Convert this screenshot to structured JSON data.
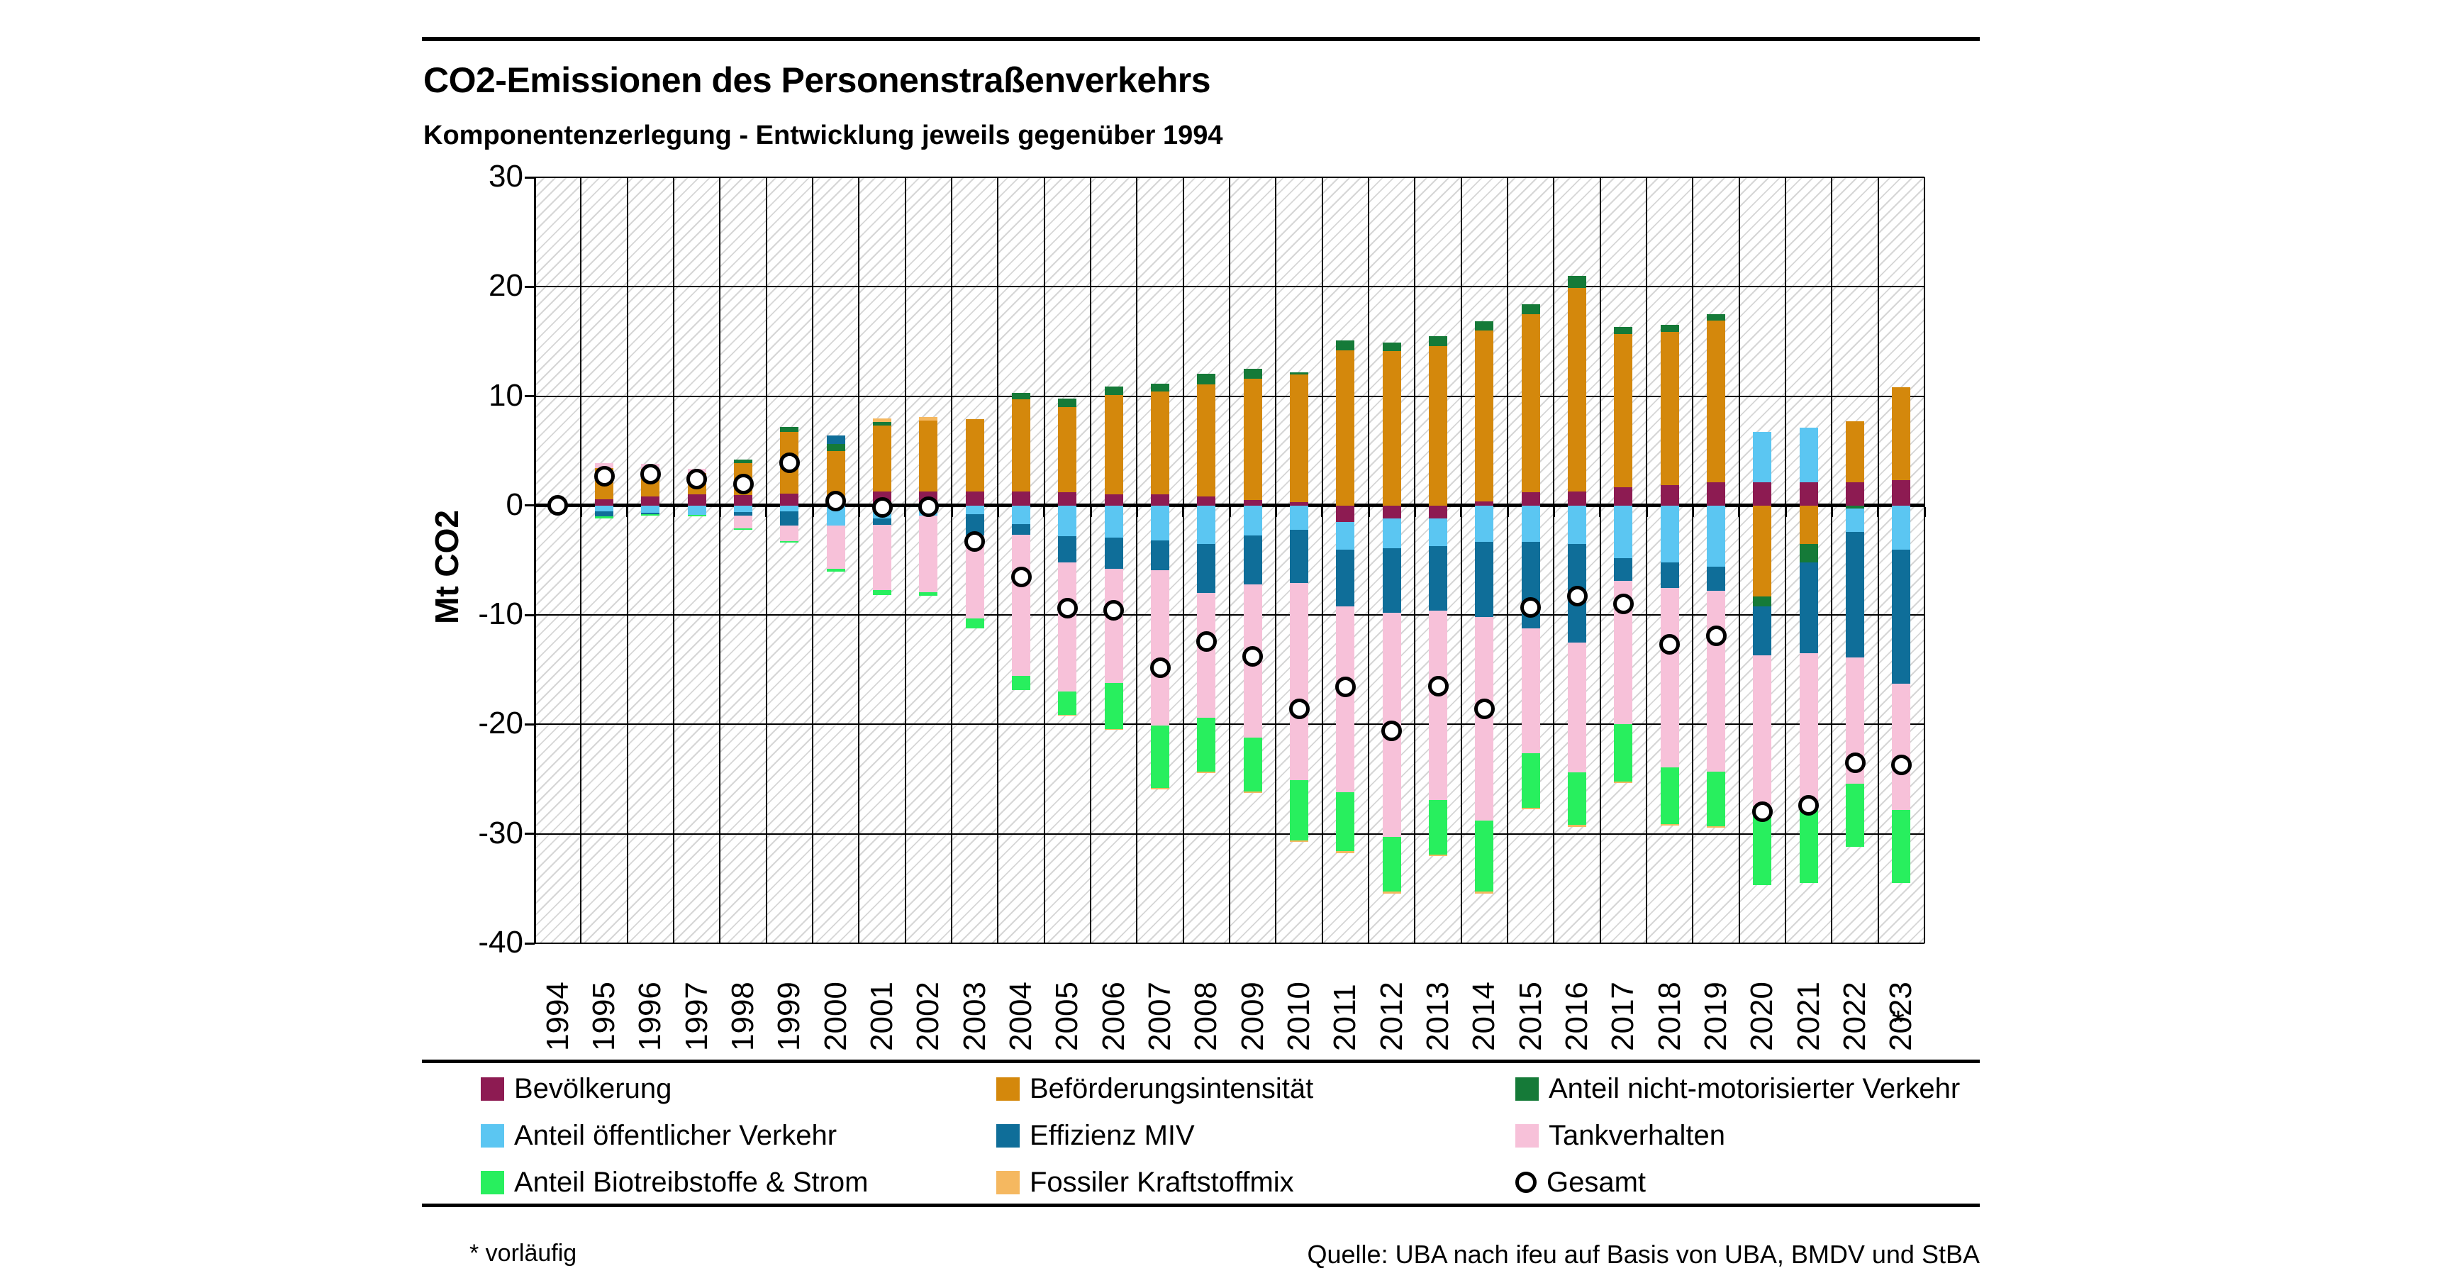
{
  "header": {
    "title": "CO2-Emissionen des Personenstraßenverkehrs",
    "subtitle": "Komponentenzerlegung - Entwicklung jeweils gegenüber 1994"
  },
  "footer": {
    "footnote": "* vorläufig",
    "source": "Quelle: UBA nach ifeu auf Basis von UBA, BMDV und StBA"
  },
  "chart_data": {
    "type": "bar",
    "subtype": "stacked-bar-with-total-markers",
    "title": "CO2-Emissionen des Personenstraßenverkehrs",
    "subtitle": "Komponentenzerlegung - Entwicklung jeweils gegenüber 1994",
    "ylabel": "Mt CO2",
    "ylim": [
      -40,
      30
    ],
    "yticks": [
      30,
      20,
      10,
      0,
      -10,
      -20,
      -30,
      -40
    ],
    "grid": "on",
    "plot_background": "diagonal-hatch",
    "legend_position": "bottom",
    "categories": [
      "1994",
      "1995",
      "1996",
      "1997",
      "1998",
      "1999",
      "2000",
      "2001",
      "2002",
      "2003",
      "2004",
      "2005",
      "2006",
      "2007",
      "2008",
      "2009",
      "2010",
      "2011",
      "2012",
      "2013",
      "2014",
      "2015",
      "2016",
      "2017",
      "2018",
      "2019",
      "2020",
      "2021",
      "2022",
      "2023"
    ],
    "last_category_flag": "*",
    "series": [
      {
        "name": "Bevölkerung",
        "slug": "bevoelkerung",
        "color": "#8D1B52",
        "values": [
          0,
          0.6,
          0.85,
          1.0,
          0.95,
          1.1,
          0.1,
          1.3,
          1.3,
          1.3,
          1.3,
          1.2,
          1.0,
          1.0,
          0.85,
          0.5,
          0.3,
          -1.5,
          -1.2,
          -1.2,
          0.4,
          1.2,
          1.3,
          1.7,
          1.9,
          2.1,
          2.1,
          2.1,
          2.1,
          2.3
        ]
      },
      {
        "name": "Beförderungsintensität",
        "slug": "befoerderungsintensitaet",
        "color": "#D4880C",
        "values": [
          0,
          2.8,
          2.5,
          1.95,
          2.95,
          5.6,
          4.9,
          6.0,
          6.5,
          6.6,
          8.4,
          7.8,
          9.1,
          9.4,
          10.2,
          11.1,
          11.7,
          14.2,
          14.1,
          14.6,
          15.6,
          16.3,
          18.6,
          14.0,
          14.0,
          14.8,
          -8.3,
          -3.5,
          5.6,
          8.5
        ]
      },
      {
        "name": "Anteil nicht-motorisierter Verkehr",
        "slug": "anteil-nicht-motorisierter-verkehr",
        "color": "#157A38",
        "values": [
          0,
          0,
          0,
          0,
          0.3,
          0.5,
          0.6,
          0.35,
          0,
          0,
          0.6,
          0.8,
          0.8,
          0.75,
          1.0,
          0.9,
          0.15,
          0.9,
          0.8,
          0.9,
          0.85,
          0.9,
          1.1,
          0.6,
          0.6,
          0.6,
          -0.9,
          -1.7,
          -0.3,
          0
        ]
      },
      {
        "name": "Anteil öffentlicher Verkehr",
        "slug": "anteil-oeffentlicher-verkehr",
        "color": "#5BC6F2",
        "values": [
          0,
          -0.55,
          -0.65,
          -0.85,
          -0.6,
          -0.55,
          -1.85,
          -1.15,
          -0.9,
          -0.8,
          -1.7,
          -2.8,
          -2.9,
          -3.2,
          -3.5,
          -2.7,
          -2.2,
          -2.5,
          -2.7,
          -2.5,
          -3.3,
          -3.3,
          -3.5,
          -4.8,
          -5.2,
          -5.6,
          4.6,
          5.0,
          -2.1,
          -4.0
        ]
      },
      {
        "name": "Effizienz MIV",
        "slug": "effizienz-miv",
        "color": "#0F6E99",
        "values": [
          0,
          -0.45,
          -0.15,
          0,
          -0.3,
          -1.3,
          0.8,
          -0.6,
          0,
          -1.9,
          -0.95,
          -2.4,
          -2.9,
          -2.7,
          -4.5,
          -4.5,
          -4.9,
          -5.2,
          -5.9,
          -5.9,
          -6.9,
          -7.9,
          -9.0,
          -2.1,
          -2.3,
          -2.2,
          -4.5,
          -8.3,
          -11.5,
          -12.3
        ]
      },
      {
        "name": "Tankverhalten",
        "slug": "tankverhalten",
        "color": "#F7C1D9",
        "values": [
          0,
          0.45,
          0.45,
          0.4,
          -1.2,
          -1.4,
          -3.9,
          -6.0,
          -7.0,
          -7.6,
          -12.9,
          -11.8,
          -10.4,
          -14.2,
          -11.4,
          -14.0,
          -18.0,
          -17.0,
          -20.5,
          -17.3,
          -18.6,
          -11.4,
          -11.9,
          -13.1,
          -16.4,
          -16.5,
          -13.8,
          -13.9,
          -11.5,
          -11.5
        ]
      },
      {
        "name": "Anteil Biotreibstoffe & Strom",
        "slug": "anteil-biotreibstoffe-strom",
        "color": "#28EF5E",
        "values": [
          0,
          -0.15,
          -0.1,
          -0.1,
          -0.1,
          -0.1,
          -0.3,
          -0.45,
          -0.35,
          -0.9,
          -1.3,
          -2.1,
          -4.2,
          -5.7,
          -4.9,
          -4.9,
          -5.5,
          -5.4,
          -5.0,
          -5.0,
          -6.5,
          -5.0,
          -4.8,
          -5.2,
          -5.2,
          -5.0,
          -7.2,
          -7.1,
          -5.8,
          -6.7
        ]
      },
      {
        "name": "Fossiler Kraftstoffmix",
        "slug": "fossiler-kraftstoffmix",
        "color": "#F5B860",
        "values": [
          0,
          0,
          0,
          0,
          0,
          0,
          0,
          0.3,
          0.3,
          0,
          0,
          -0.1,
          -0.1,
          -0.15,
          -0.15,
          -0.15,
          -0.15,
          -0.15,
          -0.15,
          -0.15,
          -0.15,
          -0.15,
          -0.15,
          -0.15,
          -0.15,
          -0.15,
          0,
          0,
          0,
          0
        ]
      }
    ],
    "total_series": {
      "name": "Gesamt",
      "slug": "gesamt",
      "marker": "open-circle",
      "values": [
        0,
        2.7,
        2.9,
        2.4,
        2.0,
        3.9,
        0.4,
        -0.2,
        -0.1,
        -3.3,
        -6.5,
        -9.4,
        -9.6,
        -14.8,
        -12.4,
        -13.8,
        -18.6,
        -16.6,
        -20.6,
        -16.5,
        -18.6,
        -9.3,
        -8.3,
        -9.0,
        -12.7,
        -11.9,
        -28.0,
        -27.4,
        -23.5,
        -23.7
      ]
    },
    "legend_order": [
      "Bevölkerung",
      "Beförderungsintensität",
      "Anteil nicht-motorisierter Verkehr",
      "Anteil öffentlicher Verkehr",
      "Effizienz MIV",
      "Tankverhalten",
      "Anteil Biotreibstoffe & Strom",
      "Fossiler Kraftstoffmix",
      "Gesamt"
    ]
  }
}
